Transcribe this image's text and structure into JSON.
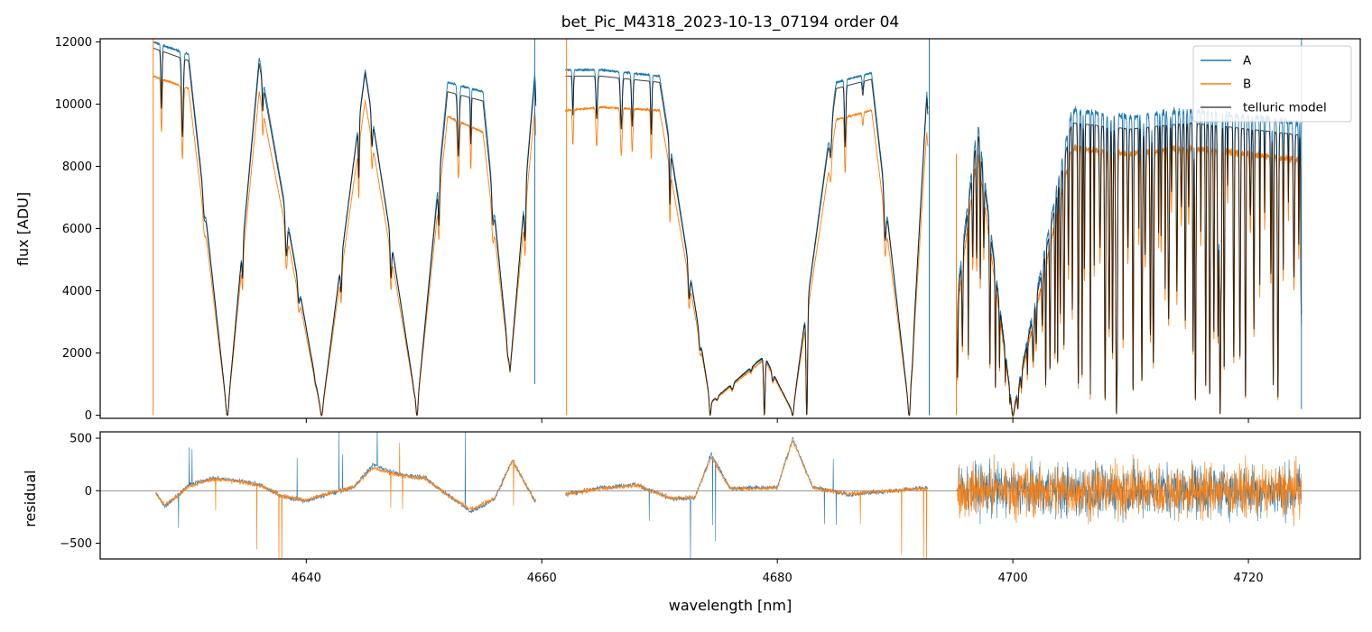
{
  "chart_data": [
    {
      "type": "line",
      "title": "bet_Pic_M4318_2023-10-13_07194  order 04",
      "xlabel": "",
      "ylabel": "flux [ADU]",
      "xlim": [
        4622.5,
        4729.5
      ],
      "ylim": [
        -100,
        12100
      ],
      "yticks": [
        0,
        2000,
        4000,
        6000,
        8000,
        10000,
        12000
      ],
      "ytick_labels": [
        "0",
        "2000",
        "4000",
        "6000",
        "8000",
        "10000",
        "12000"
      ],
      "xticks": [
        4640,
        4660,
        4680,
        4700,
        4720
      ],
      "legend_position": "top-right",
      "grid": false,
      "gaps": [
        [
          4659.5,
          4662.0
        ],
        [
          4692.8,
          4695.2
        ]
      ],
      "deep_absorption_lines": [
        4633.3,
        4641.3,
        4649.4,
        4674.3,
        4678.9,
        4681.3,
        4682.5,
        4691.2,
        4700.0,
        4708.8,
        4717.6
      ],
      "series": [
        {
          "name": "A",
          "color": "#1f77b4",
          "x": [
            4627.0,
            4630,
            4633.3,
            4636,
            4641.3,
            4645,
            4649.4,
            4652,
            4655,
            4657.3,
            4659.4,
            4662.2,
            4665,
            4670,
            4674.3,
            4678.9,
            4681.3,
            4685,
            4688,
            4691.2,
            4692.7,
            4695.3,
            4697,
            4700,
            4705,
            4710,
            4715,
            4720,
            4724.5
          ],
          "y": [
            12000,
            11600,
            0,
            11500,
            0,
            11100,
            200,
            10700,
            10400,
            1400,
            11000,
            11100,
            11100,
            10900,
            400,
            1900,
            100,
            10700,
            11000,
            100,
            10500,
            4000,
            9500,
            0,
            9800,
            9600,
            9800,
            9600,
            9400
          ]
        },
        {
          "name": "B",
          "color": "#ff7f0e",
          "x": [
            4627.0,
            4630,
            4633.3,
            4636,
            4641.3,
            4645,
            4649.4,
            4652,
            4655,
            4657.3,
            4659.4,
            4662.2,
            4665,
            4670,
            4674.3,
            4678.9,
            4681.3,
            4685,
            4688,
            4691.2,
            4692.7,
            4695.3,
            4697,
            4700,
            4705,
            4710,
            4715,
            4720,
            4724.5
          ],
          "y": [
            10900,
            10500,
            0,
            10400,
            0,
            10100,
            200,
            9600,
            9100,
            1400,
            9800,
            9800,
            9900,
            9800,
            400,
            1800,
            100,
            9500,
            9800,
            100,
            9200,
            3500,
            8500,
            0,
            8600,
            8400,
            8600,
            8400,
            8200
          ]
        },
        {
          "name": "telluric model",
          "color": "#000000",
          "x": [
            4627.0,
            4630,
            4633.3,
            4636,
            4641.3,
            4645,
            4649.4,
            4652,
            4655,
            4657.3,
            4659.4,
            4662.2,
            4665,
            4670,
            4674.3,
            4678.9,
            4681.3,
            4685,
            4688,
            4691.2,
            4692.7,
            4695.3,
            4697,
            4700,
            4705,
            4710,
            4715,
            4720,
            4724.5
          ],
          "y": [
            11800,
            11400,
            0,
            11300,
            0,
            11000,
            200,
            10400,
            10100,
            1400,
            10800,
            10900,
            10900,
            10700,
            400,
            1900,
            100,
            10500,
            10800,
            100,
            10300,
            3800,
            9200,
            0,
            9400,
            9200,
            9400,
            9200,
            9000
          ]
        }
      ]
    },
    {
      "type": "line",
      "title": "",
      "xlabel": "wavelength [nm]",
      "ylabel": "residual",
      "xlim": [
        4622.5,
        4729.5
      ],
      "ylim": [
        -650,
        560
      ],
      "yticks": [
        -500,
        0,
        500
      ],
      "ytick_labels": [
        "−500",
        "0",
        "500"
      ],
      "xticks": [
        4640,
        4660,
        4680,
        4700,
        4720
      ],
      "xtick_labels": [
        "4640",
        "4660",
        "4680",
        "4700",
        "4720"
      ],
      "zero_line": true,
      "grid": false,
      "series": [
        {
          "name": "A",
          "color": "#1f77b4",
          "x": [
            4627.2,
            4628,
            4630,
            4632,
            4634,
            4636,
            4638,
            4640,
            4642,
            4644,
            4645.7,
            4648,
            4650,
            4652,
            4654,
            4656,
            4657.5,
            4659.4,
            4662.2,
            4665,
            4668,
            4671,
            4673,
            4674.4,
            4676,
            4678,
            4680,
            4681.3,
            4683,
            4686,
            4690,
            4692.7,
            4695.3,
            4700,
            4705,
            4710,
            4715,
            4720,
            4724.5
          ],
          "y": [
            -20,
            -150,
            50,
            120,
            100,
            60,
            -60,
            -100,
            -30,
            30,
            250,
            150,
            130,
            -40,
            -200,
            -80,
            300,
            -100,
            -30,
            30,
            60,
            -80,
            -70,
            350,
            20,
            30,
            30,
            500,
            40,
            -40,
            0,
            30,
            0,
            0,
            0,
            0,
            0,
            0,
            0
          ]
        },
        {
          "name": "B",
          "color": "#ff7f0e",
          "x": [
            4627.2,
            4628,
            4630,
            4632,
            4634,
            4636,
            4638,
            4640,
            4642,
            4644,
            4645.7,
            4648,
            4650,
            4652,
            4654,
            4656,
            4657.5,
            4659.4,
            4662.2,
            4665,
            4668,
            4671,
            4673,
            4674.4,
            4676,
            4678,
            4680,
            4681.3,
            4683,
            4686,
            4690,
            4692.7,
            4695.3,
            4700,
            4705,
            4710,
            4715,
            4720,
            4724.5
          ],
          "y": [
            -20,
            -140,
            40,
            110,
            90,
            50,
            -50,
            -90,
            -20,
            30,
            220,
            140,
            120,
            -40,
            -180,
            -70,
            280,
            -90,
            -30,
            20,
            50,
            -70,
            -60,
            320,
            20,
            20,
            30,
            480,
            30,
            -30,
            0,
            20,
            0,
            0,
            0,
            0,
            0,
            0,
            0
          ]
        }
      ]
    }
  ]
}
